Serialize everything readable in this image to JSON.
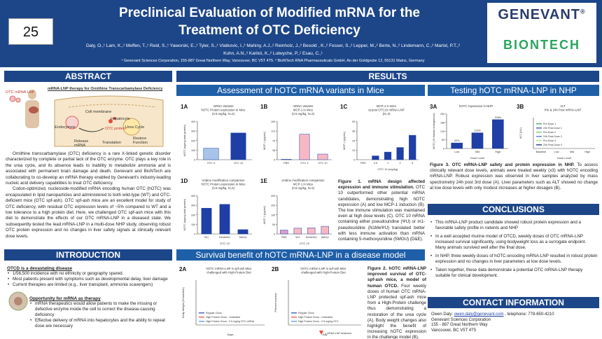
{
  "header": {
    "poster_number": "25",
    "title_line1": "Preclinical Evaluation of Modified mRNA for the",
    "title_line2": "Treatment of OTC Deficiency",
    "authors_line1": "Daly, O.,¹ Lam, K.,¹ Meffen, T.,¹ Reid, S.,¹ Yaworski, E.,¹ Tyler, S.,¹ Vlatkovic, I.,² Mahiny, A.J.,² Reinholz, J.,² Besold , K.,² Fesser, S.,² Lepper, M.,² Berte, N.,² Lindemann, C.,² Marlot, P.T.,²",
    "authors_line2": "Kuhn, A.N.,² Karikó, K.,² Lutwyche, P.,¹ Esau, C.,¹",
    "affiliations": "¹ Genevant Sciences Corporation, 155-887 Great Northern Way, Vancouver, BC V5T 4T5.  ² BioNTech RNA Pharmaceuticals GmbH, An der Goldgrube 12, 55131 Mainz, Germany",
    "logo1": "GENEVANT",
    "logo1_mark": "®",
    "logo2": "BIONTECH"
  },
  "abstract": {
    "heading": "ABSTRACT",
    "figure_title": "mRNA-LNP therapy for Ornithine Transcarbamylase Deficiency",
    "figure_labels": {
      "otc_mrna_lnp": "OTC mRNA LNP",
      "cell_membrane": "Cell membrane",
      "hepatocyte": "Hepatocyte",
      "endocytosis": "Endocytosis",
      "otc_protein": "OTC protein",
      "release_mrna": "Release mRNA",
      "translation": "Translation",
      "urea_cycle": "Urea Cycle",
      "restore_function": "Restore Function"
    },
    "paragraph1": "Ornithine transcarbamylase (OTC) deficiency is a rare X-linked genetic disorder characterized by complete or partial lack of the OTC enzyme. OTC plays a key role in the urea cycle, and its absence leads to inability to metabolize ammonia and is associated with permanent brain damage and death. Genevant and BioNTech are collaborating to co-develop an mRNA therapy enabled by Genevant's industry-leading nucleic acid delivery capabilities to treat OTC deficiency.",
    "paragraph2": "Codon-optimized, nucleoside-modified mRNA encoding human OTC (hOTC) was encapsulated in lipid nanoparticles and administered to both wild-type (WT) and OTC-deficient mice (OTC spf-ash). OTC spf-ash mice are an excellent model for study of OTC deficiency, with residual OTC expression levels of ~5% compared to WT and a low tolerance to a high protein diet. Here, we challenged OTC spf-ash mice with this diet to demonstrate the effects of our OTC mRNA-LNP in a diseased state. We subsequently tested the lead mRNA-LNP in a multi-dose NHP study, observing robust OTC protein expression and no changes in liver safety signals at clinically relevant dose levels."
  },
  "introduction": {
    "heading": "INTRODUCTION",
    "h1": "OTCD is a devastating disease",
    "bullets1": [
      "1/56,500 incidence with no ethnicity or geography spared.",
      "Most patients present with symptoms such as developmental delay, liver damage",
      "Current therapies are limited (e.g., liver transplant, ammonia scavengers)"
    ],
    "h2": "Opportunity for mRNA as therapy",
    "bullets2": [
      "mRNA therapeutics would allow patients to make the missing or defective enzyme inside the cell to correct the disease-causing deficiency",
      "Effective delivery of mRNA into hepatocytes and the ability to repeat dose are necessary"
    ]
  },
  "results": {
    "heading": "RESULTS",
    "mice_heading": "Assessment of hOTC mRNA variants in Mice",
    "nhp_heading": "Testing hOTC mRNA-LNP in NHP",
    "survival_heading": "Survival benefit of hOTC mRNA-LNP in a disease model",
    "fig1_caption_bold": "Figure 1. mRNA design affected expression and immune stimulation.",
    "fig1_caption": " OTC 10 outperformed other potential mRNA candidates, demonstrating high hOTC expression (A) and low MCP-1 induction (B). The low immune stimulation was maintained even at high dose levels (C). OTC 10 mRNA containing either pseudouridine (ΨU) or m1-pseudouridine (N1MeΨU) translated better with less immune activation than mRNA containing 5-methoxyuridine (5MOU) (D&E).",
    "fig2_caption_bold": "Figure 2. hOTC mRNA-LNP improved survival of OTC-spf-ash mice, a model of human OTCD.",
    "fig2_caption": " Four weekly doses of human OTC mRNA-LNP protected spf-ash mice from a High-Protein challenge thus demonstrating a restoration of the urea cycle (A). Body weight changes also highlight the benefit of increasing hOTC expression in the challenge model (B).",
    "fig3_caption_bold": "Figure 3. OTC mRNA-LNP safety and protein expression in NHP.",
    "fig3_caption": " To assess clinically relevant dose levels, animals were treated weekly (x3) with hOTC encoding mRNA-LNP. Robust expression was observed in liver samples analyzed by mass spectrometry 24h post 3rd dose (A). Liver parameters such as ALT showed no change at low dose levels with only modest increases at higher dosages (B)."
  },
  "conclusions": {
    "heading": "CONCLUSIONS",
    "bullets": [
      "This mRNA-LNP product candidate showed robust protein expression and a favorable safety profile in rodents and NHP",
      "In a well accepted murine model of OTCD, weekly doses of OTC mRNA-LNP increased survival significantly, using bodyweight loss as a surrogate endpoint. Many animals survived well after the final dose.",
      "In NHP, three weekly doses of hOTC-encoding mRNA-LNP resulted in robust protein expression and no changes in liver parameters at low dose levels.",
      "Taken together, these data demonstrate a potential OTC mRNA-LNP therapy suitable for clinical development."
    ]
  },
  "contact": {
    "heading": "CONTACT INFORMATION",
    "line1_prefix": "Owen Daly: ",
    "email": "owen.daly@genevant.com",
    "line1_suffix": " , telephone: 778-650-4210",
    "line2": "Genevant Sciences Corporation",
    "line3": "155 - 887 Great Northern Way",
    "line4": "Vancouver, BC V5T 4T5"
  },
  "chart_data": [
    {
      "panel": "1A",
      "type": "bar",
      "title": "mRNA Variants\nhOTC Protein expression in Mice\n(0.5 mg/kg, N=4)",
      "categories": [
        "OTC 4",
        "OTC 10"
      ],
      "values": [
        120,
        280
      ],
      "ylabel": "hOTC (ng/mg total protein)",
      "ylim": [
        0,
        400
      ],
      "colors": [
        "#a8c3e8",
        "#1f3fa6"
      ]
    },
    {
      "panel": "1B",
      "type": "bar",
      "title": "mRNA Variants\nMCP-1 in Mice\n(0.5 mg/kg, N=4)",
      "categories": [
        "PBS",
        "OTC 4",
        "OTC 10"
      ],
      "values": [
        2,
        100,
        22
      ],
      "ylabel": "MCP-1 (pg/mL)",
      "ylim": [
        0,
        150
      ],
      "colors": [
        "#cfcfcf",
        "#f7b8c4",
        "#f7b8c4"
      ]
    },
    {
      "panel": "1C",
      "type": "bar",
      "title": "MCP-1 in Mice\nat post OTC10 mRNA-LNP\n(N=4)",
      "categories": [
        "PBS",
        "0.5",
        "1",
        "2",
        "5"
      ],
      "values": [
        0,
        5,
        10,
        16,
        32
      ],
      "ylabel": "MCP-1 (pg/mL)",
      "xlabel": "OTC 10 (mg/kg)",
      "ylim": [
        0,
        50
      ],
      "colors": [
        "#1f3fa6"
      ]
    },
    {
      "panel": "1D",
      "type": "bar",
      "title": "Uridine modification comparison\nhOTC Protein expression in Mice\n(0.5 mg/kg, N=4)",
      "categories": [
        "ΨU",
        "N1MeΨU",
        "5MOU"
      ],
      "values": [
        270,
        310,
        45
      ],
      "ylabel": "hOTC (ng/mg total protein)",
      "xlabel": "OTC 10",
      "ylim": [
        0,
        400
      ],
      "colors": [
        "#1f3fa6"
      ]
    },
    {
      "panel": "1E",
      "type": "bar",
      "title": "Uridine modification comparison\nMCP-1 in Mice\n(0.5 mg/kg, N=4)",
      "categories": [
        "PBS",
        "ΨU",
        "N1MeΨU",
        "5MOU"
      ],
      "values": [
        20,
        30,
        32,
        40
      ],
      "ylabel": "MCP-1 (pg/mL)",
      "xlabel": "OTC 10",
      "ylim": [
        0,
        200
      ],
      "colors": [
        "#d8a0c8",
        "#f7b8c4",
        "#f7b8c4",
        "#f7b8c4"
      ]
    },
    {
      "panel": "3A",
      "type": "bar",
      "title": "hOTC expression in NHP",
      "categories": [
        "Low",
        "Mid",
        "High"
      ],
      "values": [
        40,
        113,
        208
      ],
      "data_labels": [
        "40%",
        "113%",
        "208%"
      ],
      "ylabel": "hOTC (% human endogenous)",
      "xlabel": "Dose Level",
      "ylim": [
        0,
        250
      ],
      "colors": [
        "#1f3fa6"
      ]
    },
    {
      "panel": "3B",
      "type": "line",
      "title": "ALT\nPre & 24h Post mRNA-LNP",
      "categories": [
        "Baseline",
        "Low",
        "Mid",
        "High"
      ],
      "series": [
        {
          "name": "Pre-Dose 1",
          "color": "#2a9d3a"
        },
        {
          "name": "24h Post-Dose 1",
          "color": "#1f3fa6"
        },
        {
          "name": "Pre-Dose 2",
          "color": "#6bbf59"
        },
        {
          "name": "24h Post-Dose 2",
          "color": "#3a6fd0"
        },
        {
          "name": "Pre-Dose 3",
          "color": "#a1d99b"
        },
        {
          "name": "24h Post-Dose 3",
          "color": "#0b1f6e"
        }
      ],
      "ylabel": "ALT (U/L)",
      "xlabel": "Dose Level"
    },
    {
      "panel": "2A",
      "type": "line",
      "title": "hOTC mRNA-LNP in spf-ash Mice\nchallenged with High-Protein Diet",
      "series": [
        {
          "name": "Regular Chow",
          "color": "#1f3fa6"
        },
        {
          "name": "High Protein Chow - Untreated",
          "color": "#e8413b"
        },
        {
          "name": "High Protein Chow - 0.5 mg/kg OTC mRNA",
          "color": "#4a90d9"
        }
      ],
      "ylabel": "Body Weight (% baseline)",
      "xlabel": "Days"
    },
    {
      "panel": "2B",
      "type": "line",
      "title": "hOTC mRNA-LNP in spf-ash Mice\nchallenged with High-Protein Diet",
      "series": [
        {
          "name": "Regular Chow",
          "color": "#1f3fa6"
        },
        {
          "name": "High Protein Chow - Untreated",
          "color": "#e8413b"
        },
        {
          "name": "High Protein Chow - 0.5 mg/kg OTC",
          "color": "#4a90d9"
        }
      ],
      "ylabel": "Percent survival",
      "xlabel": "Day",
      "dose_marker_label": "= mRNA-LNP treatment"
    }
  ]
}
